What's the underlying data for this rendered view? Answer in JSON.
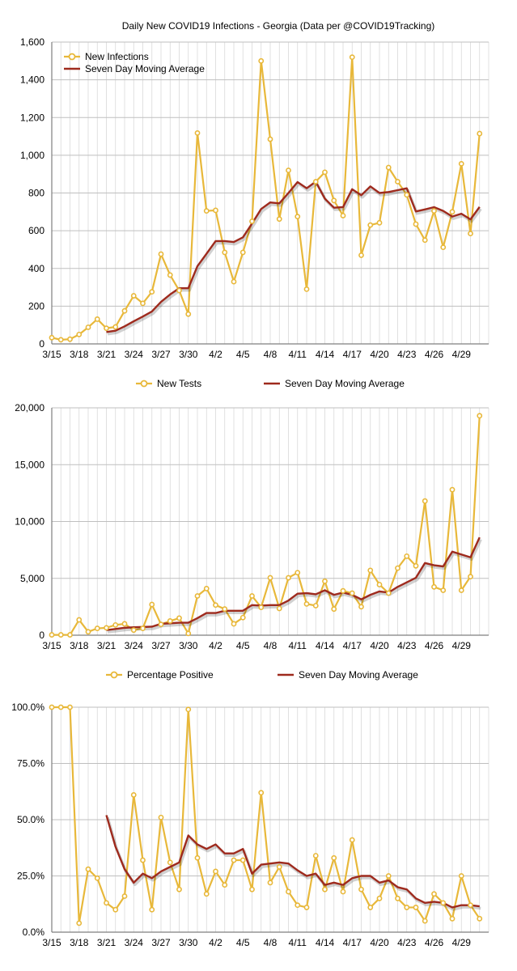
{
  "colors": {
    "daily": "#E8B83A",
    "average": "#9E2A1D",
    "grid": "#BFBFBF",
    "vgrid": "#D9D9D9",
    "axis": "#7F7F7F",
    "background": "#FFFFFF"
  },
  "chart_data": [
    {
      "id": "infections",
      "type": "line",
      "title": "Daily New COVID19 Infections - Georgia (Data per @COVID19Tracking)",
      "categories": [
        "3/15",
        "3/16",
        "3/17",
        "3/18",
        "3/19",
        "3/20",
        "3/21",
        "3/22",
        "3/23",
        "3/24",
        "3/25",
        "3/26",
        "3/27",
        "3/28",
        "3/29",
        "3/30",
        "3/31",
        "4/1",
        "4/2",
        "4/3",
        "4/4",
        "4/5",
        "4/6",
        "4/7",
        "4/8",
        "4/9",
        "4/10",
        "4/11",
        "4/12",
        "4/13",
        "4/14",
        "4/15",
        "4/16",
        "4/17",
        "4/18",
        "4/19",
        "4/20",
        "4/21",
        "4/22",
        "4/23",
        "4/24",
        "4/25",
        "4/26",
        "4/27",
        "4/28",
        "4/29",
        "4/30",
        "5/1"
      ],
      "tick_labels": [
        "3/15",
        "3/18",
        "3/21",
        "3/24",
        "3/27",
        "3/30",
        "4/2",
        "4/5",
        "4/8",
        "4/11",
        "4/14",
        "4/17",
        "4/20",
        "4/23",
        "4/26",
        "4/29"
      ],
      "ylim": [
        0,
        1600
      ],
      "yticks": [
        0,
        200,
        400,
        600,
        800,
        1000,
        1200,
        1400,
        1600
      ],
      "ytick_labels": [
        "0",
        "200",
        "400",
        "600",
        "800",
        "1,000",
        "1,200",
        "1,400",
        "1,600"
      ],
      "legend_position": "top-left",
      "series": [
        {
          "name": "New Infections",
          "values": [
            33,
            22,
            25,
            50,
            88,
            131,
            83,
            90,
            175,
            255,
            215,
            276,
            476,
            365,
            283,
            158,
            1118,
            705,
            708,
            485,
            330,
            485,
            650,
            1500,
            1085,
            662,
            920,
            675,
            290,
            860,
            910,
            760,
            680,
            1520,
            470,
            630,
            642,
            935,
            860,
            790,
            635,
            550,
            705,
            512,
            700,
            955,
            585,
            1115
          ]
        },
        {
          "name": "Seven Day Moving Average",
          "values": [
            null,
            null,
            null,
            null,
            null,
            null,
            63,
            70,
            93,
            120,
            145,
            172,
            223,
            262,
            295,
            295,
            412,
            478,
            545,
            545,
            540,
            565,
            638,
            715,
            750,
            745,
            800,
            858,
            825,
            860,
            770,
            722,
            725,
            820,
            788,
            835,
            800,
            805,
            815,
            825,
            702,
            713,
            725,
            705,
            675,
            690,
            660,
            726
          ]
        }
      ]
    },
    {
      "id": "tests",
      "type": "line",
      "title": "",
      "categories": [
        "3/15",
        "3/16",
        "3/17",
        "3/18",
        "3/19",
        "3/20",
        "3/21",
        "3/22",
        "3/23",
        "3/24",
        "3/25",
        "3/26",
        "3/27",
        "3/28",
        "3/29",
        "3/30",
        "3/31",
        "4/1",
        "4/2",
        "4/3",
        "4/4",
        "4/5",
        "4/6",
        "4/7",
        "4/8",
        "4/9",
        "4/10",
        "4/11",
        "4/12",
        "4/13",
        "4/14",
        "4/15",
        "4/16",
        "4/17",
        "4/18",
        "4/19",
        "4/20",
        "4/21",
        "4/22",
        "4/23",
        "4/24",
        "4/25",
        "4/26",
        "4/27",
        "4/28",
        "4/29",
        "4/30",
        "5/1"
      ],
      "tick_labels": [
        "3/15",
        "3/18",
        "3/21",
        "3/24",
        "3/27",
        "3/30",
        "4/2",
        "4/5",
        "4/8",
        "4/11",
        "4/14",
        "4/17",
        "4/20",
        "4/23",
        "4/26",
        "4/29"
      ],
      "ylim": [
        0,
        20000
      ],
      "yticks": [
        0,
        5000,
        10000,
        15000,
        20000
      ],
      "ytick_labels": [
        "0",
        "5,000",
        "10,000",
        "15,000",
        "20,000"
      ],
      "legend_position": "top",
      "series": [
        {
          "name": "New Tests",
          "values": [
            30,
            30,
            30,
            1350,
            300,
            600,
            650,
            900,
            1000,
            450,
            600,
            2700,
            950,
            1250,
            1500,
            150,
            3450,
            4100,
            2650,
            2300,
            1000,
            1550,
            3450,
            2450,
            5050,
            2350,
            5050,
            5500,
            2750,
            2600,
            4750,
            2300,
            3900,
            3700,
            2500,
            5700,
            4450,
            3700,
            5900,
            6950,
            6100,
            11800,
            4250,
            3950,
            12800,
            3950,
            5150,
            19300
          ]
        },
        {
          "name": "Seven Day Moving Average",
          "values": [
            null,
            null,
            null,
            null,
            null,
            null,
            450,
            550,
            650,
            700,
            720,
            750,
            1000,
            1050,
            1100,
            1100,
            1500,
            1950,
            1950,
            2150,
            2150,
            2150,
            2650,
            2600,
            2650,
            2650,
            3050,
            3650,
            3700,
            3600,
            3950,
            3550,
            3750,
            3550,
            3150,
            3550,
            3850,
            3750,
            4250,
            4650,
            5050,
            6350,
            6150,
            6050,
            7350,
            7100,
            6850,
            8600
          ]
        }
      ]
    },
    {
      "id": "positive",
      "type": "line",
      "title": "",
      "categories": [
        "3/15",
        "3/16",
        "3/17",
        "3/18",
        "3/19",
        "3/20",
        "3/21",
        "3/22",
        "3/23",
        "3/24",
        "3/25",
        "3/26",
        "3/27",
        "3/28",
        "3/29",
        "3/30",
        "3/31",
        "4/1",
        "4/2",
        "4/3",
        "4/4",
        "4/5",
        "4/6",
        "4/7",
        "4/8",
        "4/9",
        "4/10",
        "4/11",
        "4/12",
        "4/13",
        "4/14",
        "4/15",
        "4/16",
        "4/17",
        "4/18",
        "4/19",
        "4/20",
        "4/21",
        "4/22",
        "4/23",
        "4/24",
        "4/25",
        "4/26",
        "4/27",
        "4/28",
        "4/29",
        "4/30",
        "5/1"
      ],
      "tick_labels": [
        "3/15",
        "3/18",
        "3/21",
        "3/24",
        "3/27",
        "3/30",
        "4/2",
        "4/5",
        "4/8",
        "4/11",
        "4/14",
        "4/17",
        "4/20",
        "4/23",
        "4/26",
        "4/29"
      ],
      "ylim": [
        0,
        100
      ],
      "yticks": [
        0,
        25,
        50,
        75,
        100
      ],
      "ytick_labels": [
        "0.0%",
        "25.0%",
        "50.0%",
        "75.0%",
        "100.0%"
      ],
      "legend_position": "top",
      "series": [
        {
          "name": "Percentage Positive",
          "values": [
            100,
            100,
            100,
            4,
            28,
            24,
            13,
            10,
            16,
            61,
            32,
            10,
            51,
            31,
            19,
            99,
            33,
            17,
            27,
            21,
            32,
            32,
            19,
            62,
            22,
            29,
            18,
            12,
            11,
            34,
            19,
            33,
            18,
            41,
            19,
            11,
            15,
            25,
            15,
            11,
            11,
            5,
            17,
            13,
            6,
            25,
            12,
            6
          ]
        },
        {
          "name": "Seven Day Moving Average",
          "values": [
            null,
            null,
            null,
            null,
            null,
            null,
            52,
            38,
            28,
            22,
            26,
            24,
            27,
            29,
            31,
            43,
            39,
            37,
            39,
            35,
            35,
            37,
            26,
            30,
            30.5,
            31,
            30.5,
            27.5,
            25,
            26,
            21,
            22,
            21,
            24,
            25,
            25,
            22,
            23,
            20,
            19,
            15,
            13,
            13.5,
            13,
            11,
            12,
            12,
            11.5
          ]
        }
      ]
    }
  ]
}
